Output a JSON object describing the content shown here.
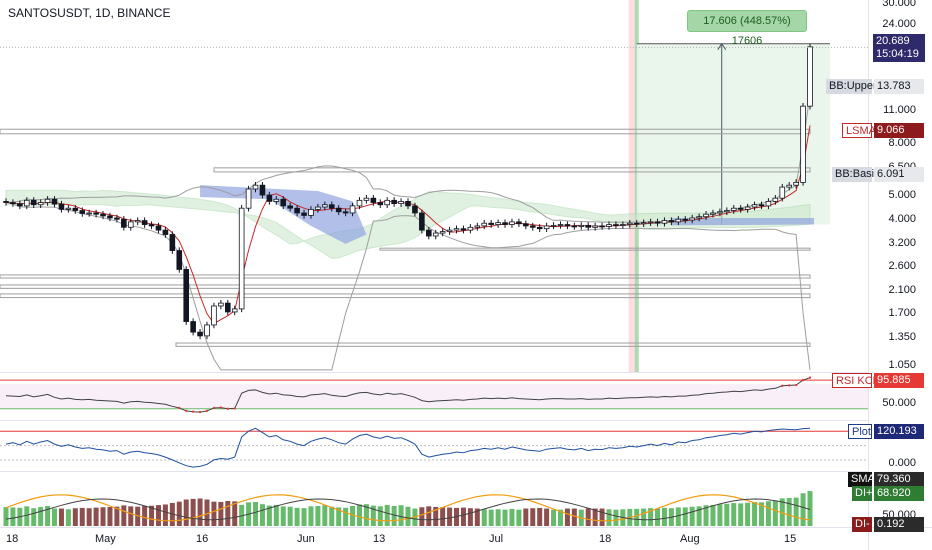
{
  "symbol": "SANTOSUSDT, 1D, BINANCE",
  "measure_label": "17.606 (448.57%) 17606",
  "current_price": "20.689",
  "countdown": "15:04:19",
  "y_axis_labels": [
    "30.000",
    "24.000",
    "11.000",
    "8.000",
    "6.500",
    "5.000",
    "4.000",
    "3.200",
    "2.600",
    "2.100",
    "1.700",
    "1.350",
    "1.050"
  ],
  "indicator_labels": {
    "bb_upper": {
      "name": "BB:Upper",
      "value": "13.783"
    },
    "lsma": {
      "name": "LSMA",
      "value": "9.066"
    },
    "bb_basis": {
      "name": "BB:Basis",
      "value": "6.091"
    },
    "rsi": {
      "name": "RSI KCH",
      "value": "95.885"
    },
    "plot": {
      "name": "Plot",
      "value": "120.193"
    },
    "sma": {
      "name": "SMA",
      "value": "79.360"
    },
    "di_plus": {
      "name": "DI+",
      "value": "68.920"
    },
    "di_minus": {
      "name": "DI-",
      "value": "0.192"
    }
  },
  "rsi_axis": [
    "50.000"
  ],
  "plot_axis": [
    "0.000"
  ],
  "dmi_axis": [
    "50.000"
  ],
  "x_axis_labels": [
    "18",
    "May",
    "16",
    "Jun",
    "13",
    "Jul",
    "18",
    "Aug",
    "15"
  ],
  "colors": {
    "up": "#ffffff",
    "down": "#131722",
    "lsma": "#c62828",
    "bollinger": "#9e9e9e",
    "cloud_green": "#c8e6c9",
    "cloud_blue": "#90a4e0",
    "measure_zone": "#e8f5e9",
    "rsi_line": "#424242",
    "rsi_hot": "#e53935",
    "plot_line": "#1e4fa0",
    "dmi_plus": "#66bb6a",
    "dmi_minus": "#8d4e4e",
    "dmi_orange": "#f39c12"
  },
  "chart_data": [
    {
      "type": "candlestick",
      "title": "SANTOSUSDT, 1D, BINANCE",
      "scale": "log",
      "ylim": [
        1.0,
        32.0
      ],
      "x_ticks": [
        "18",
        "May",
        "16",
        "Jun",
        "13",
        "Jul",
        "18",
        "Aug",
        "15"
      ],
      "close": [
        4.85,
        4.8,
        4.7,
        4.95,
        4.75,
        4.85,
        5.0,
        4.78,
        4.55,
        4.6,
        4.5,
        4.38,
        4.4,
        4.35,
        4.28,
        4.2,
        4.15,
        3.85,
        4.05,
        4.1,
        3.95,
        3.9,
        3.75,
        3.6,
        3.1,
        2.6,
        1.6,
        1.45,
        1.4,
        1.55,
        1.85,
        1.9,
        1.75,
        1.8,
        4.6,
        5.5,
        5.7,
        5.2,
        4.9,
        5.0,
        4.7,
        4.6,
        4.4,
        4.3,
        4.55,
        4.65,
        4.75,
        4.6,
        4.45,
        4.4,
        4.7,
        4.95,
        5.05,
        4.85,
        4.75,
        4.95,
        4.8,
        4.9,
        4.7,
        4.4,
        3.75,
        3.55,
        3.65,
        3.7,
        3.75,
        3.8,
        3.75,
        3.85,
        3.9,
        4.0,
        3.95,
        4.02,
        3.95,
        4.05,
        3.98,
        3.9,
        3.85,
        3.8,
        3.9,
        3.92,
        3.95,
        3.9,
        3.88,
        3.92,
        3.85,
        3.9,
        3.88,
        3.95,
        3.92,
        3.95,
        4.0,
        3.98,
        4.02,
        4.05,
        4.0,
        4.1,
        4.05,
        4.15,
        4.12,
        4.2,
        4.25,
        4.35,
        4.4,
        4.45,
        4.5,
        4.6,
        4.55,
        4.65,
        4.75,
        4.7,
        4.9,
        5.05,
        5.6,
        5.7,
        5.85,
        11.9,
        20.689
      ],
      "bb_upper_last": 13.783,
      "bb_basis_last": 6.091,
      "lsma_last": 9.066,
      "measure": {
        "change": 17.606,
        "percent": 448.57,
        "ticks": 17606
      }
    },
    {
      "type": "line",
      "name": "RSI KCH",
      "last": 95.885,
      "values": [
        52,
        51,
        50,
        54,
        49,
        52,
        55,
        48,
        44,
        46,
        43,
        42,
        43,
        41,
        40,
        39,
        38,
        34,
        37,
        38,
        36,
        35,
        33,
        31,
        26,
        22,
        15,
        13,
        12,
        15,
        22,
        23,
        20,
        21,
        58,
        65,
        66,
        60,
        56,
        58,
        54,
        53,
        50,
        49,
        54,
        55,
        57,
        53,
        51,
        50,
        55,
        59,
        60,
        56,
        54,
        58,
        55,
        57,
        53,
        48,
        40,
        37,
        39,
        40,
        41,
        42,
        41,
        43,
        44,
        46,
        45,
        46,
        45,
        47,
        45,
        44,
        43,
        42,
        44,
        45,
        45,
        44,
        44,
        45,
        43,
        44,
        44,
        46,
        45,
        46,
        47,
        47,
        48,
        49,
        48,
        50,
        49,
        51,
        51,
        53,
        54,
        57,
        58,
        60,
        61,
        63,
        62,
        64,
        66,
        65,
        68,
        70,
        76,
        77,
        78,
        90,
        95.885
      ]
    },
    {
      "type": "line",
      "name": "Plot",
      "last": 120.193,
      "values": [
        10,
        20,
        5,
        30,
        10,
        25,
        35,
        10,
        -5,
        5,
        -10,
        -20,
        -15,
        -25,
        -30,
        -40,
        -35,
        -60,
        -45,
        -40,
        -50,
        -55,
        -65,
        -80,
        -100,
        -120,
        -140,
        -150,
        -145,
        -130,
        -100,
        -90,
        -95,
        -80,
        60,
        100,
        120,
        90,
        60,
        70,
        40,
        30,
        10,
        0,
        30,
        45,
        55,
        40,
        20,
        10,
        45,
        70,
        80,
        60,
        50,
        65,
        50,
        55,
        35,
        10,
        -60,
        -80,
        -70,
        -60,
        -55,
        -45,
        -50,
        -35,
        -30,
        -20,
        -25,
        -15,
        -25,
        -10,
        -20,
        -30,
        -35,
        -40,
        -25,
        -20,
        -15,
        -25,
        -30,
        -20,
        -35,
        -25,
        -28,
        -15,
        -20,
        -15,
        -5,
        -10,
        0,
        10,
        0,
        15,
        5,
        25,
        20,
        35,
        40,
        55,
        60,
        70,
        75,
        85,
        80,
        90,
        100,
        95,
        105,
        110,
        115,
        112,
        110,
        118,
        120.193
      ]
    },
    {
      "type": "bar",
      "name": "DMI",
      "series": [
        {
          "name": "DI+",
          "last": 68.92
        },
        {
          "name": "DI-",
          "last": 0.192
        },
        {
          "name": "SMA",
          "last": 79.36
        }
      ]
    }
  ]
}
